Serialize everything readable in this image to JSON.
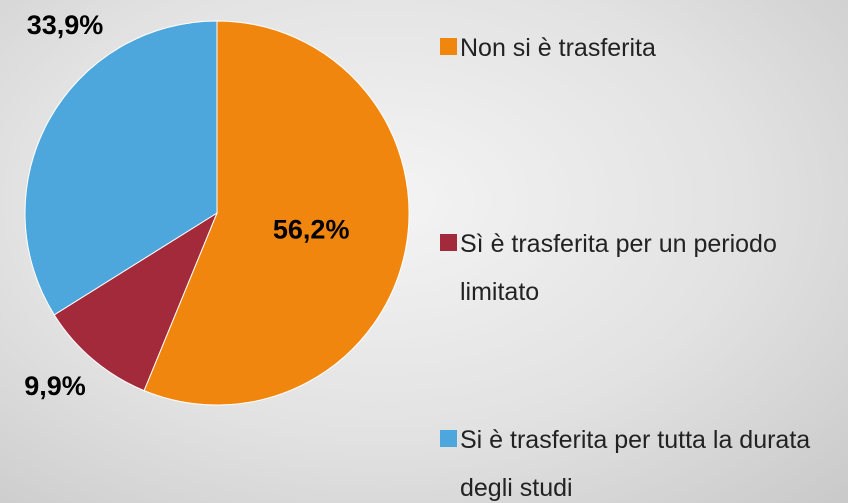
{
  "chart_data": {
    "type": "pie",
    "categories": [
      "Non si è trasferita",
      "Sì è trasferita per un periodo limitato",
      "Si è trasferita per tutta la durata degli studi"
    ],
    "values": [
      56.2,
      9.9,
      33.9
    ],
    "value_labels": [
      "56,2%",
      "9,9%",
      "33,9%"
    ],
    "colors": [
      "#f0860e",
      "#a32a3a",
      "#4ea7dc"
    ],
    "legend": "right"
  }
}
